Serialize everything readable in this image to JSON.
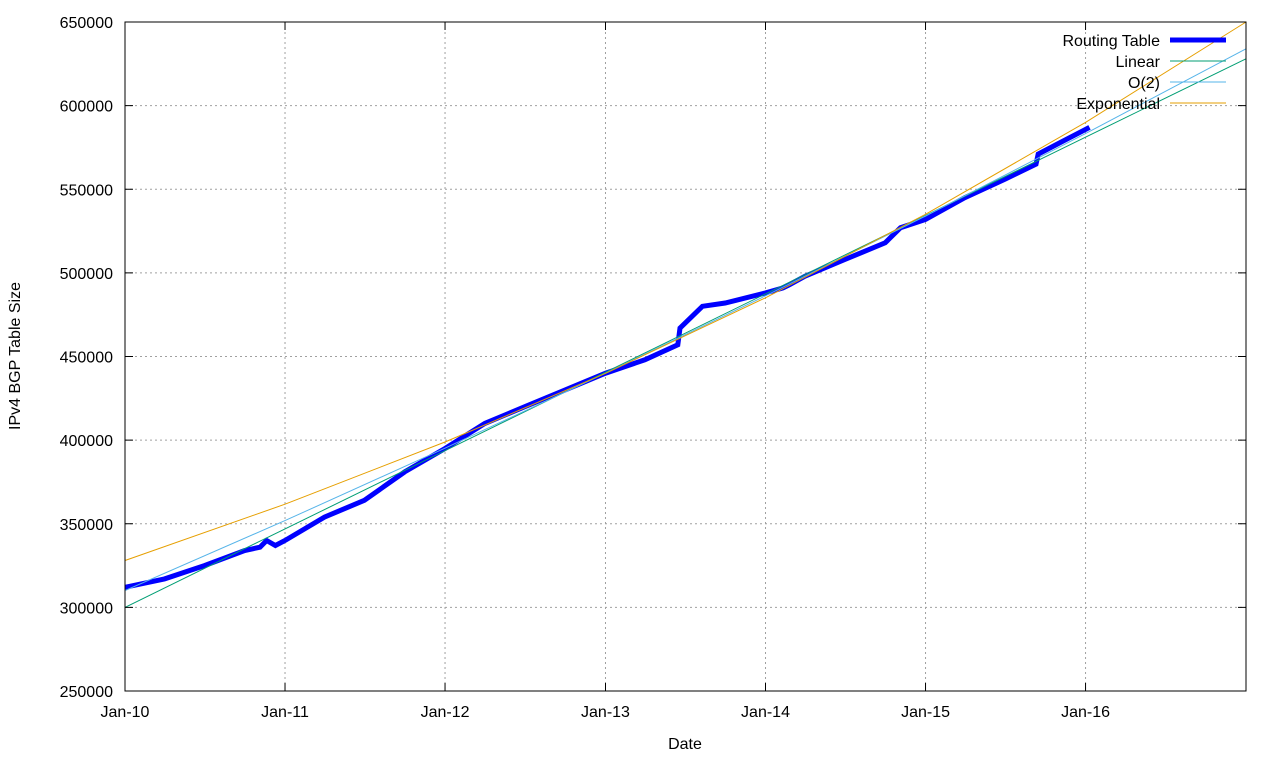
{
  "chart_data": {
    "type": "line",
    "title": "",
    "xlabel": "Date",
    "ylabel": "IPv4 BGP Table Size",
    "xlim": [
      "2010-01",
      "2017-01"
    ],
    "ylim": [
      250000,
      650000
    ],
    "yticks": [
      250000,
      300000,
      350000,
      400000,
      450000,
      500000,
      550000,
      600000,
      650000
    ],
    "xticks": [
      {
        "date": "2010-01",
        "label": "Jan-10"
      },
      {
        "date": "2011-01",
        "label": "Jan-11"
      },
      {
        "date": "2012-01",
        "label": "Jan-12"
      },
      {
        "date": "2013-01",
        "label": "Jan-13"
      },
      {
        "date": "2014-01",
        "label": "Jan-14"
      },
      {
        "date": "2015-01",
        "label": "Jan-15"
      },
      {
        "date": "2016-01",
        "label": "Jan-16"
      }
    ],
    "grid": true,
    "legend_position": "top-right",
    "series": [
      {
        "name": "Routing Table",
        "color": "#0000ff",
        "width": "thick",
        "points": [
          [
            "2010-01-01",
            312000
          ],
          [
            "2010-04-01",
            317000
          ],
          [
            "2010-07-01",
            325000
          ],
          [
            "2010-10-01",
            334000
          ],
          [
            "2010-11-05",
            336000
          ],
          [
            "2010-11-20",
            340000
          ],
          [
            "2010-12-10",
            337000
          ],
          [
            "2011-01-01",
            340000
          ],
          [
            "2011-04-01",
            354000
          ],
          [
            "2011-07-01",
            364000
          ],
          [
            "2011-10-01",
            381000
          ],
          [
            "2012-01-01",
            395000
          ],
          [
            "2012-04-01",
            410000
          ],
          [
            "2012-07-01",
            420000
          ],
          [
            "2012-10-01",
            430000
          ],
          [
            "2013-01-01",
            440000
          ],
          [
            "2013-04-01",
            448000
          ],
          [
            "2013-06-15",
            457000
          ],
          [
            "2013-06-20",
            467000
          ],
          [
            "2013-08-10",
            480000
          ],
          [
            "2013-10-01",
            482000
          ],
          [
            "2014-01-01",
            488000
          ],
          [
            "2014-02-10",
            491000
          ],
          [
            "2014-02-25",
            493000
          ],
          [
            "2014-04-01",
            498000
          ],
          [
            "2014-07-01",
            508000
          ],
          [
            "2014-10-01",
            518000
          ],
          [
            "2014-11-05",
            527000
          ],
          [
            "2015-01-01",
            532000
          ],
          [
            "2015-04-01",
            545000
          ],
          [
            "2015-07-01",
            556000
          ],
          [
            "2015-09-10",
            565000
          ],
          [
            "2015-09-15",
            571000
          ],
          [
            "2015-11-05",
            578000
          ],
          [
            "2016-01-10",
            587000
          ]
        ]
      },
      {
        "name": "Linear",
        "color": "#009e73",
        "width": "thin",
        "points": [
          [
            "2010-01-01",
            300000
          ],
          [
            "2011-01-01",
            346900
          ],
          [
            "2012-01-01",
            393700
          ],
          [
            "2013-01-01",
            440600
          ],
          [
            "2014-01-01",
            487400
          ],
          [
            "2015-01-01",
            534300
          ],
          [
            "2016-01-01",
            581100
          ],
          [
            "2017-01-01",
            628000
          ]
        ]
      },
      {
        "name": "O(2)",
        "color": "#56b4e9",
        "width": "thin",
        "points": [
          [
            "2010-01-01",
            310000
          ],
          [
            "2011-01-01",
            351900
          ],
          [
            "2012-01-01",
            395200
          ],
          [
            "2013-01-01",
            440000
          ],
          [
            "2014-01-01",
            486300
          ],
          [
            "2015-01-01",
            534000
          ],
          [
            "2016-01-01",
            583300
          ],
          [
            "2017-01-01",
            634000
          ]
        ]
      },
      {
        "name": "Exponential",
        "color": "#e69f00",
        "width": "thin",
        "points": [
          [
            "2010-01-01",
            328000
          ],
          [
            "2011-01-01",
            361700
          ],
          [
            "2012-01-01",
            398900
          ],
          [
            "2013-01-01",
            439900
          ],
          [
            "2014-01-01",
            485100
          ],
          [
            "2015-01-01",
            535000
          ],
          [
            "2016-01-01",
            590000
          ],
          [
            "2017-01-01",
            650000
          ]
        ]
      }
    ]
  }
}
